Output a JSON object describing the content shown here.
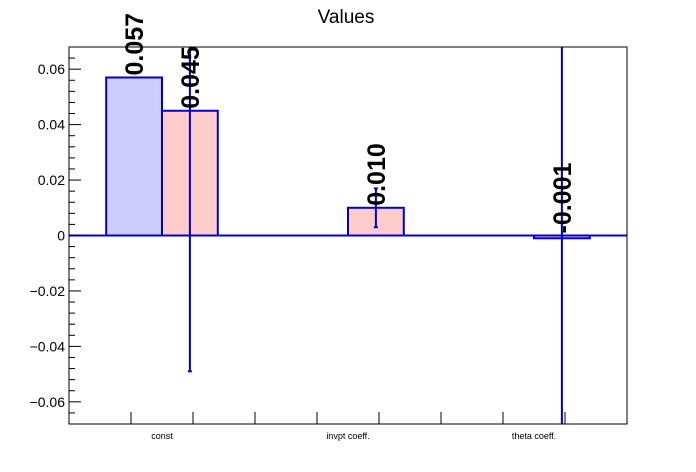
{
  "chart_data": {
    "type": "bar",
    "title": "Values",
    "xlabel": "",
    "ylabel": "",
    "categories": [
      "const",
      "invpt coeff.",
      "theta coeff."
    ],
    "ylim": [
      -0.068,
      0.068
    ],
    "yticks": [
      "0.06",
      "0.04",
      "0.02",
      "0",
      "−0.02",
      "−0.04",
      "−0.06"
    ],
    "ytick_values": [
      0.06,
      0.04,
      0.02,
      0,
      -0.02,
      -0.04,
      -0.06
    ],
    "grid": false,
    "series": [
      {
        "color": "#ccccff",
        "edge_color": "#0000cc",
        "values": [
          0.057,
          null,
          null
        ],
        "errors": [
          null,
          null,
          null
        ],
        "labels": [
          "0.057",
          "",
          ""
        ]
      },
      {
        "color": "#ffcccc",
        "edge_color": "#0000cc",
        "values": [
          0.045,
          0.01,
          -0.001
        ],
        "errors": [
          0.094,
          0.007,
          0.5
        ],
        "labels": [
          "0.045",
          "0.010",
          "-0.001"
        ]
      }
    ]
  }
}
